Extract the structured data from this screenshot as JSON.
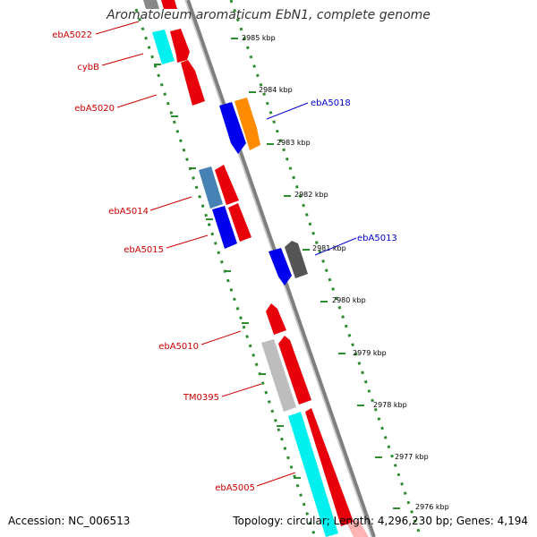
{
  "title": "Aromatoleum aromaticum EbN1, complete genome",
  "accession_text": "Accession: NC_006513",
  "summary_text": "Topology: circular; Length: 4,296,230 bp; Genes: 4,194",
  "colors": {
    "backbone": "#7f7f7f",
    "dotted_guides": "#2e8b2e",
    "red_gene": "#e8000b",
    "blue_gene": "#0000ee",
    "orange_gene": "#ff8c00",
    "cyan_gene": "#00ffff",
    "steelblue_gene": "#4682b4",
    "grey_gene": "#bdbdbd",
    "darkgrey_gene": "#555555",
    "left_labels": "#cc0000",
    "right_labels": "#0000cc"
  },
  "kbp_labels": [
    "2985 kbp",
    "2984 kbp",
    "2983 kbp",
    "2982 kbp",
    "2981 kbp",
    "2980 kbp",
    "2979 kbp",
    "2978 kbp",
    "2977 kbp",
    "2976 kbp"
  ],
  "genes": [
    {
      "label": "ebA5022",
      "side": "left",
      "color": "red"
    },
    {
      "label": "cybB",
      "side": "left",
      "color": "red"
    },
    {
      "label": "ebA5020",
      "side": "left",
      "color": "red"
    },
    {
      "label": "ebA5018",
      "side": "right",
      "color": "blue"
    },
    {
      "label": "ebA5014",
      "side": "left",
      "color": "red"
    },
    {
      "label": "ebA5015",
      "side": "left",
      "color": "red"
    },
    {
      "label": "ebA5013",
      "side": "right",
      "color": "blue"
    },
    {
      "label": "ebA5010",
      "side": "left",
      "color": "red"
    },
    {
      "label": "TM0395",
      "side": "left",
      "color": "red"
    },
    {
      "label": "ebA5005",
      "side": "left",
      "color": "red"
    }
  ]
}
